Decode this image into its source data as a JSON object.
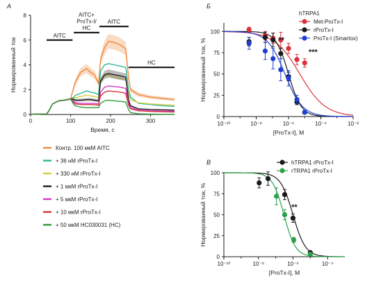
{
  "panels": {
    "a": "A",
    "b": "Б",
    "c": "В"
  },
  "chart_data": [
    {
      "type": "line",
      "panel": "A",
      "xlabel": "Время, с",
      "ylabel": "Нормированный ток",
      "xlim": [
        0,
        360
      ],
      "ylim": [
        0,
        8
      ],
      "xticks": [
        0,
        100,
        200,
        300
      ],
      "yticks": [
        0,
        2,
        4,
        6,
        8
      ],
      "annotations": [
        {
          "text": "AITC",
          "x0": 40,
          "x1": 105,
          "y": 6.0
        },
        {
          "text": "AITC+ ProTx-I/ HC",
          "lines": [
            "AITC+",
            "ProTx-I/",
            "HC"
          ],
          "x0": 108,
          "x1": 172,
          "y": 6.6
        },
        {
          "text": "AITC",
          "x0": 172,
          "x1": 245,
          "y": 7.1
        },
        {
          "text": "HC",
          "x0": 245,
          "x1": 360,
          "y": 3.8
        }
      ],
      "x": [
        0,
        20,
        40,
        45,
        55,
        70,
        85,
        100,
        108,
        112,
        125,
        140,
        150,
        160,
        170,
        175,
        185,
        195,
        210,
        225,
        238,
        245,
        250,
        270,
        300,
        330,
        360
      ],
      "series": [
        {
          "name": "Контр. 100 мкМ AITC",
          "color": "#f0883a",
          "band": true,
          "values": [
            0.02,
            0.03,
            0.05,
            0.25,
            0.85,
            1.1,
            1.15,
            1.25,
            2.2,
            2.6,
            3.4,
            3.7,
            3.4,
            3.2,
            2.5,
            4.4,
            5.4,
            5.9,
            5.8,
            5.6,
            5.3,
            3.0,
            2.0,
            1.6,
            1.4,
            1.3,
            1.2
          ]
        },
        {
          "name": "+ 36 нМ rProTx-I",
          "color": "#2bb596",
          "values": [
            0.02,
            0.03,
            0.05,
            0.25,
            0.85,
            1.1,
            1.15,
            1.25,
            1.4,
            1.55,
            1.7,
            1.9,
            1.8,
            1.75,
            1.6,
            3.5,
            4.0,
            4.1,
            4.0,
            3.9,
            3.8,
            2.0,
            1.4,
            0.9,
            0.8,
            0.7,
            0.65
          ]
        },
        {
          "name": "+ 330 нМ rProTx-I",
          "color": "#d9cf3c",
          "values": [
            0.02,
            0.03,
            0.05,
            0.25,
            0.85,
            1.1,
            1.15,
            1.25,
            1.3,
            1.35,
            1.45,
            1.55,
            1.5,
            1.45,
            1.35,
            2.6,
            3.1,
            3.2,
            3.0,
            2.9,
            2.8,
            1.6,
            1.2,
            0.95,
            0.85,
            0.8,
            0.75
          ]
        },
        {
          "name": "+ 1 мкМ rProTx-I",
          "color": "#1a1a1a",
          "band": true,
          "values": [
            0.02,
            0.03,
            0.05,
            0.25,
            0.85,
            1.1,
            1.15,
            1.25,
            1.2,
            1.15,
            1.15,
            1.2,
            1.2,
            1.15,
            1.1,
            2.7,
            3.2,
            3.3,
            3.2,
            3.1,
            3.0,
            1.2,
            0.7,
            0.45,
            0.4,
            0.38,
            0.35
          ]
        },
        {
          "name": "+ 5 мкМ rProTx-I",
          "color": "#d236c8",
          "values": [
            0.02,
            0.03,
            0.05,
            0.25,
            0.85,
            1.1,
            1.15,
            1.25,
            1.05,
            0.95,
            0.9,
            0.9,
            0.9,
            0.88,
            0.85,
            1.8,
            2.2,
            2.3,
            2.25,
            2.2,
            2.1,
            0.9,
            0.55,
            0.35,
            0.3,
            0.28,
            0.25
          ]
        },
        {
          "name": "+ 10 мкМ rProTx-I",
          "color": "#d9333a",
          "values": [
            0.02,
            0.03,
            0.05,
            0.25,
            0.85,
            1.1,
            1.15,
            1.25,
            0.95,
            0.85,
            0.8,
            0.8,
            0.8,
            0.78,
            0.75,
            1.5,
            1.8,
            1.9,
            1.85,
            1.8,
            1.7,
            0.75,
            0.45,
            0.3,
            0.25,
            0.22,
            0.2
          ]
        },
        {
          "name": "+ 50 мкМ HC030031 (HC)",
          "color": "#2e9a3a",
          "values": [
            0.02,
            0.03,
            0.05,
            0.25,
            0.85,
            1.1,
            1.15,
            1.25,
            0.8,
            0.7,
            0.6,
            0.55,
            0.55,
            0.55,
            0.55,
            0.9,
            1.1,
            1.15,
            1.1,
            1.05,
            1.0,
            0.4,
            0.15,
            0.05,
            0.03,
            0.02,
            0.02
          ]
        }
      ]
    },
    {
      "type": "scatter",
      "panel": "Б",
      "xlabel": "[ProTx-I], M",
      "ylabel": "Нормированный ток, %",
      "xscale": "log",
      "xlim": [
        1e-10,
        0.01
      ],
      "ylim": [
        0,
        110
      ],
      "xticks": [
        "10⁻¹⁰",
        "10⁻⁸",
        "10⁻⁶",
        "10⁻⁴",
        "10⁻²"
      ],
      "yticks": [
        0,
        25,
        50,
        75,
        100
      ],
      "legend_title": "hTRPA1",
      "legend_position": "top-right",
      "significance": [
        {
          "text": "**",
          "x": 3.6e-07,
          "y": 87
        },
        {
          "text": "***",
          "x": 3.3e-05,
          "y": 73
        }
      ],
      "series": [
        {
          "name": "Met-ProTx-I",
          "color": "#d9333a",
          "x": [
            3.6e-09,
            3.6e-08,
            1.1e-07,
            3.3e-07,
            1e-06,
            3.3e-06,
            1e-05
          ],
          "y": [
            102,
            95,
            92,
            90,
            80,
            67,
            63
          ],
          "err": [
            3,
            5,
            6,
            9,
            6,
            6,
            5
          ],
          "fit_ic50": 5e-06,
          "fit_hill": 0.55
        },
        {
          "name": "rProTx-I",
          "color": "#1a1a1a",
          "x": [
            3.6e-09,
            3.6e-08,
            1.1e-07,
            3.3e-07,
            1e-06,
            3.3e-06,
            1e-05
          ],
          "y": [
            88,
            93,
            90,
            74,
            47,
            17,
            5
          ],
          "err": [
            5,
            6,
            8,
            6,
            5,
            3,
            1
          ],
          "fit_ic50": 1e-06,
          "fit_hill": 1.1
        },
        {
          "name": "ProTx-I (Smartox)",
          "color": "#1f3fd1",
          "x": [
            3.6e-09,
            3.6e-08,
            1.1e-07,
            3.3e-07,
            1e-06,
            3.3e-06,
            1e-05
          ],
          "y": [
            86,
            77,
            68,
            55,
            45,
            20,
            5
          ],
          "err": [
            7,
            10,
            12,
            13,
            9,
            5,
            2
          ],
          "fit_ic50": 6e-07,
          "fit_hill": 0.8
        }
      ]
    },
    {
      "type": "scatter",
      "panel": "В",
      "xlabel": "[ProTx-I], M",
      "ylabel": "Нормированный ток, %",
      "xscale": "log",
      "xlim": [
        1e-10,
        0.001
      ],
      "ylim": [
        0,
        100
      ],
      "xticks": [
        "10⁻¹⁰",
        "10⁻⁸",
        "10⁻⁶",
        "10⁻⁴"
      ],
      "yticks": [
        0,
        25,
        50,
        75,
        100
      ],
      "legend_position": "top-right",
      "significance": [
        {
          "text": "**",
          "x": 1.2e-06,
          "y": 56
        }
      ],
      "series": [
        {
          "name": "hTRPA1 rProTx-I",
          "color": "#1a1a1a",
          "x": [
            1.1e-08,
            3.6e-08,
            3.3e-07,
            1e-06,
            1e-05
          ],
          "y": [
            88,
            93,
            74,
            46,
            5
          ],
          "err": [
            6,
            8,
            6,
            5,
            1
          ],
          "fit_ic50": 1e-06,
          "fit_hill": 1.2
        },
        {
          "name": "rTRPA1 rProTx-I",
          "color": "#2ba04a",
          "x": [
            1.1e-07,
            3.3e-07,
            1.1e-06,
            1e-05
          ],
          "y": [
            72,
            50,
            20,
            3
          ],
          "err": [
            10,
            6,
            3,
            1
          ],
          "fit_ic50": 3e-07,
          "fit_hill": 1.3
        }
      ]
    }
  ]
}
